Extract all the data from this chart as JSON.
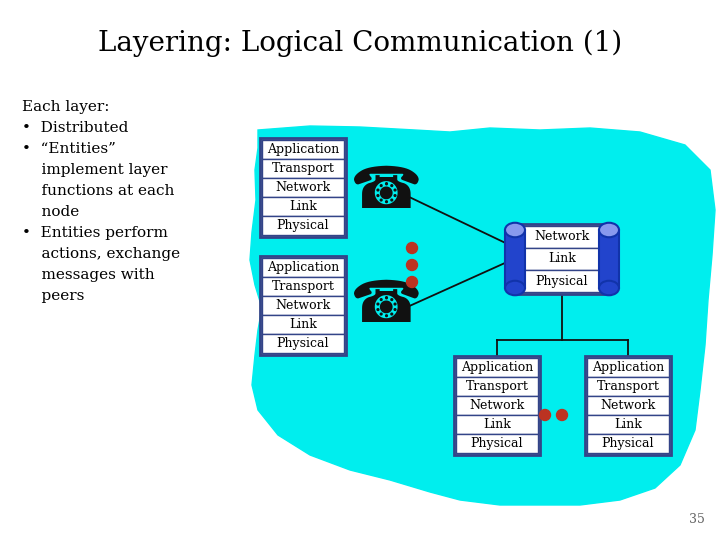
{
  "title": "Layering: Logical Communication (1)",
  "title_fontsize": 20,
  "bg_color": "#ffffff",
  "cyan_color": "#00EEEE",
  "box_edge_color": "#5555aa",
  "box_bg_color": "#ffffff",
  "text_color": "#000000",
  "layers_full": [
    "Application",
    "Transport",
    "Network",
    "Link",
    "Physical"
  ],
  "layers_partial": [
    "Network",
    "Link",
    "Physical"
  ],
  "left_text": [
    [
      "Each layer:",
      false
    ],
    [
      "•  Distributed",
      false
    ],
    [
      "•  “Entities”",
      false
    ],
    [
      "    implement layer",
      false
    ],
    [
      "    functions at each",
      false
    ],
    [
      "    node",
      false
    ],
    [
      "•  Entities perform",
      false
    ],
    [
      "    actions, exchange",
      false
    ],
    [
      "    messages with",
      false
    ],
    [
      "    peers",
      false
    ]
  ],
  "page_number": "35",
  "dot_color": "#bb3322",
  "line_color": "#111111",
  "router_blue": "#2244cc",
  "router_light": "#8899ee",
  "router_dark": "#1133aa"
}
